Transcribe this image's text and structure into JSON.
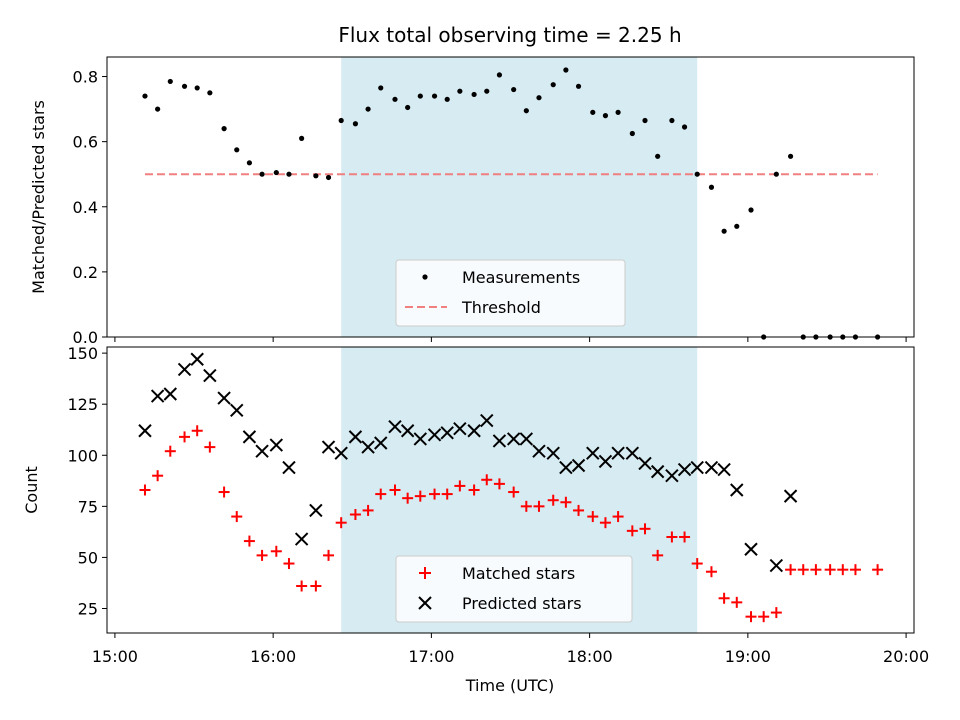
{
  "chart_data": [
    {
      "type": "scatter",
      "title": "Flux total observing time = 2.25 h",
      "xlabel": "",
      "ylabel": "Matched/Predicted stars",
      "x_unit": "hours (UTC, decimal)",
      "xlim": [
        14.95,
        20.05
      ],
      "ylim": [
        0,
        0.86
      ],
      "yticks": [
        0.0,
        0.2,
        0.4,
        0.6,
        0.8
      ],
      "ytick_labels": [
        "0.0",
        "0.2",
        "0.4",
        "0.6",
        "0.8"
      ],
      "shaded_region": [
        16.43,
        18.68
      ],
      "shaded_color": "#add8e6",
      "legend_position": "lower center",
      "series": [
        {
          "name": "Measurements",
          "marker": "dot",
          "color": "#000000",
          "x": [
            15.19,
            15.27,
            15.35,
            15.44,
            15.52,
            15.6,
            15.69,
            15.77,
            15.85,
            15.93,
            16.02,
            16.1,
            16.18,
            16.27,
            16.35,
            16.43,
            16.52,
            16.6,
            16.68,
            16.77,
            16.85,
            16.93,
            17.02,
            17.1,
            17.18,
            17.27,
            17.35,
            17.43,
            17.52,
            17.6,
            17.68,
            17.77,
            17.85,
            17.93,
            18.02,
            18.1,
            18.18,
            18.27,
            18.35,
            18.43,
            18.52,
            18.6,
            18.68,
            18.77,
            18.85,
            18.93,
            19.02,
            19.1,
            19.18,
            19.27,
            19.35,
            19.43,
            19.52,
            19.6,
            19.68,
            19.82
          ],
          "y": [
            0.74,
            0.7,
            0.785,
            0.77,
            0.765,
            0.75,
            0.64,
            0.575,
            0.535,
            0.5,
            0.505,
            0.5,
            0.61,
            0.495,
            0.49,
            0.665,
            0.655,
            0.7,
            0.765,
            0.73,
            0.705,
            0.74,
            0.74,
            0.73,
            0.755,
            0.745,
            0.755,
            0.805,
            0.76,
            0.695,
            0.735,
            0.775,
            0.82,
            0.77,
            0.69,
            0.68,
            0.69,
            0.625,
            0.665,
            0.555,
            0.665,
            0.645,
            0.5,
            0.46,
            0.325,
            0.34,
            0.39,
            0.0,
            0.5,
            0.555,
            0.0,
            0.0,
            0.0,
            0.0,
            0.0,
            0.0
          ]
        },
        {
          "name": "Threshold",
          "type": "line",
          "style": "dashed",
          "color": "#f08080",
          "x": [
            15.19,
            19.82
          ],
          "y": [
            0.5,
            0.5
          ]
        }
      ]
    },
    {
      "type": "scatter",
      "title": "",
      "xlabel": "Time (UTC)",
      "ylabel": "Count",
      "x_unit": "hours (UTC, decimal)",
      "xlim": [
        14.95,
        20.05
      ],
      "ylim": [
        13,
        153
      ],
      "xticks": [
        15,
        16,
        17,
        18,
        19,
        20
      ],
      "xtick_labels": [
        "15:00",
        "16:00",
        "17:00",
        "18:00",
        "19:00",
        "20:00"
      ],
      "yticks": [
        25,
        50,
        75,
        100,
        125,
        150
      ],
      "ytick_labels": [
        "25",
        "50",
        "75",
        "100",
        "125",
        "150"
      ],
      "shaded_region": [
        16.43,
        18.68
      ],
      "shaded_color": "#add8e6",
      "legend_position": "lower center",
      "series": [
        {
          "name": "Matched stars",
          "marker": "plus",
          "color": "#ff0000",
          "x": [
            15.19,
            15.27,
            15.35,
            15.44,
            15.52,
            15.6,
            15.69,
            15.77,
            15.85,
            15.93,
            16.02,
            16.1,
            16.18,
            16.27,
            16.35,
            16.43,
            16.52,
            16.6,
            16.68,
            16.77,
            16.85,
            16.93,
            17.02,
            17.1,
            17.18,
            17.27,
            17.35,
            17.43,
            17.52,
            17.6,
            17.68,
            17.77,
            17.85,
            17.93,
            18.02,
            18.1,
            18.18,
            18.27,
            18.35,
            18.43,
            18.52,
            18.6,
            18.68,
            18.77,
            18.85,
            18.93,
            19.02,
            19.1,
            19.18,
            19.27,
            19.35,
            19.43,
            19.52,
            19.6,
            19.68,
            19.82
          ],
          "y": [
            83,
            90,
            102,
            109,
            112,
            104,
            82,
            70,
            58,
            51,
            53,
            47,
            36,
            36,
            51,
            67,
            71,
            73,
            81,
            83,
            79,
            80,
            81,
            81,
            85,
            83,
            88,
            86,
            82,
            75,
            75,
            78,
            77,
            73,
            70,
            67,
            70,
            63,
            64,
            51,
            60,
            60,
            47,
            43,
            30,
            28,
            21,
            21,
            23,
            44,
            44,
            44,
            44,
            44,
            44,
            44
          ]
        },
        {
          "name": "Predicted stars",
          "marker": "x",
          "color": "#000000",
          "x": [
            15.19,
            15.27,
            15.35,
            15.44,
            15.52,
            15.6,
            15.69,
            15.77,
            15.85,
            15.93,
            16.02,
            16.1,
            16.18,
            16.27,
            16.35,
            16.43,
            16.52,
            16.6,
            16.68,
            16.77,
            16.85,
            16.93,
            17.02,
            17.1,
            17.18,
            17.27,
            17.35,
            17.43,
            17.52,
            17.6,
            17.68,
            17.77,
            17.85,
            17.93,
            18.02,
            18.1,
            18.18,
            18.27,
            18.35,
            18.43,
            18.52,
            18.6,
            18.68,
            18.77,
            18.85,
            18.93,
            19.02,
            19.18,
            19.27
          ],
          "y": [
            112,
            129,
            130,
            142,
            147,
            139,
            128,
            122,
            109,
            102,
            105,
            94,
            59,
            73,
            104,
            101,
            109,
            104,
            106,
            114,
            112,
            108,
            110,
            111,
            113,
            112,
            117,
            107,
            108,
            108,
            102,
            101,
            94,
            95,
            101,
            97,
            101,
            101,
            96,
            92,
            90,
            93,
            94,
            94,
            93,
            83,
            54,
            46,
            80
          ]
        }
      ]
    }
  ]
}
